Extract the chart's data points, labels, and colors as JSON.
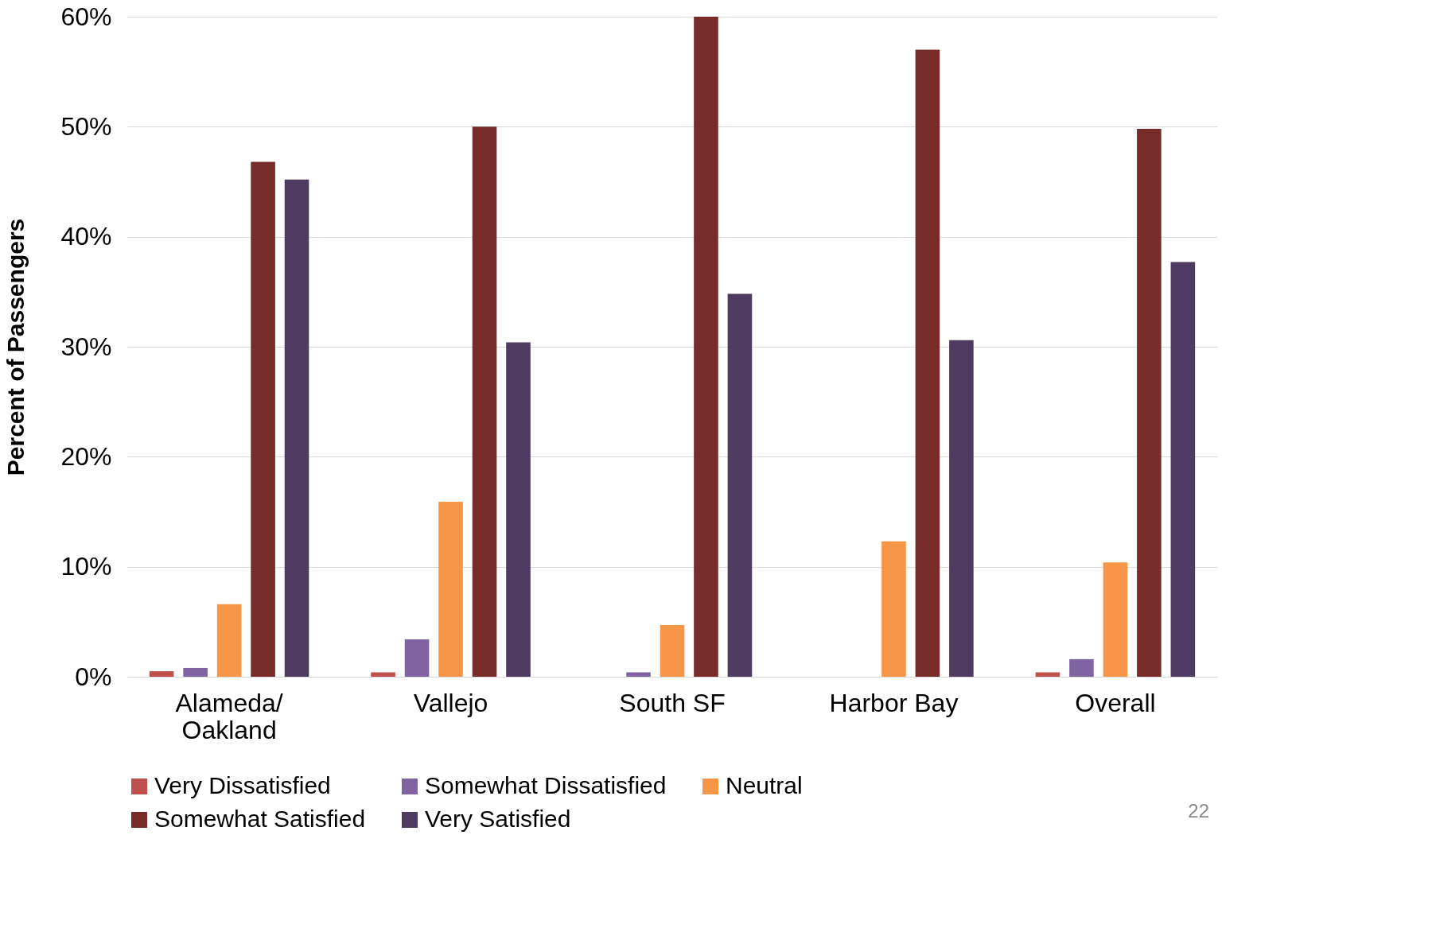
{
  "chart_data": {
    "type": "bar",
    "ylabel": "Percent of Passengers",
    "categories": [
      "Alameda/\nOakland",
      "Vallejo",
      "South SF",
      "Harbor Bay",
      "Overall"
    ],
    "series": [
      {
        "name": "Very Dissatisfied",
        "color": "#c0504d",
        "values": [
          0.5,
          0.4,
          null,
          null,
          0.4
        ]
      },
      {
        "name": "Somewhat Dissatisfied",
        "color": "#8064a2",
        "values": [
          0.8,
          3.4,
          0.4,
          null,
          1.6
        ]
      },
      {
        "name": "Neutral",
        "color": "#f79646",
        "values": [
          6.6,
          15.9,
          4.7,
          12.3,
          10.4
        ]
      },
      {
        "name": "Somewhat Satisfied",
        "color": "#772c2a",
        "values": [
          46.8,
          50.0,
          60.0,
          57.0,
          49.8
        ]
      },
      {
        "name": "Very Satisfied",
        "color": "#4d3b62",
        "values": [
          45.2,
          30.4,
          34.8,
          30.6,
          37.7
        ]
      }
    ],
    "ylim": [
      0,
      60
    ],
    "yticks": [
      {
        "value": 0,
        "label": "0%"
      },
      {
        "value": 10,
        "label": "10%"
      },
      {
        "value": 20,
        "label": "20%"
      },
      {
        "value": 30,
        "label": "30%"
      },
      {
        "value": 40,
        "label": "40%"
      },
      {
        "value": 50,
        "label": "50%"
      },
      {
        "value": 60,
        "label": "60%"
      }
    ],
    "grid": "y",
    "legend": "bottom",
    "annotations": [
      "22"
    ]
  }
}
